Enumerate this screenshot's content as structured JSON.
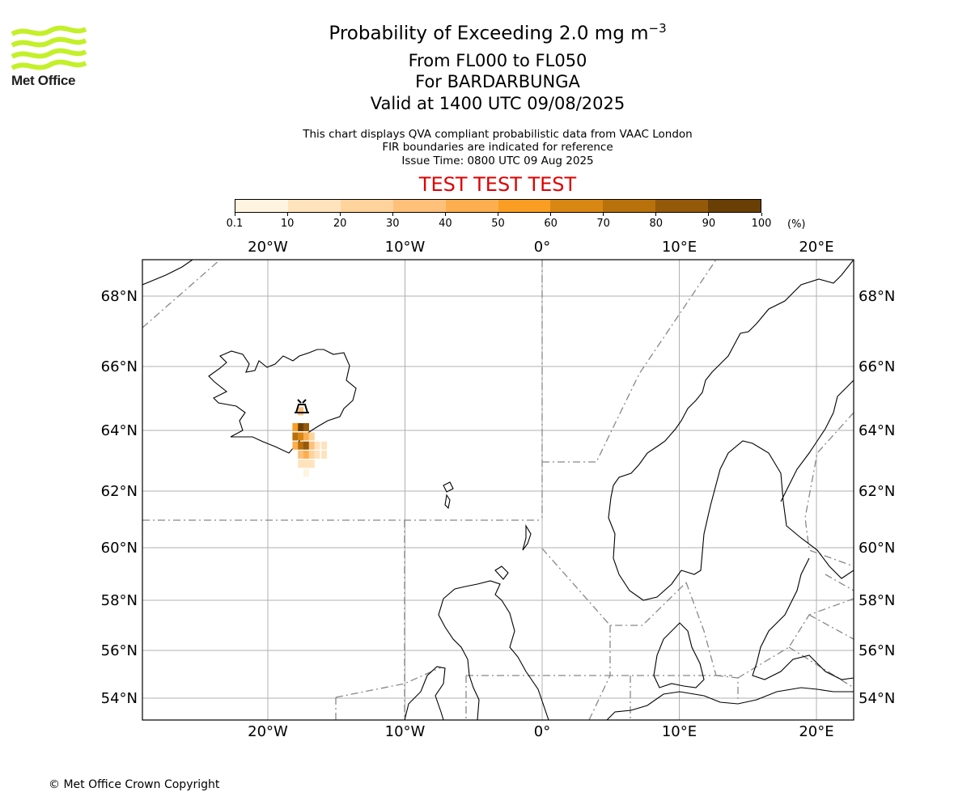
{
  "logo": {
    "text": "Met Office",
    "colors": {
      "waves": "#c3f029",
      "text": "#1e1e1e"
    }
  },
  "header": {
    "title_main": "Probability of Exceeding 2.0 mg m",
    "title_sup": "−3",
    "line_levels": "From FL000 to FL050",
    "line_volcano": "For BARDARBUNGA",
    "line_valid": "Valid at 1400 UTC 09/08/2025",
    "note_1": "This chart displays QVA compliant probabilistic data from VAAC London",
    "note_2": "FIR boundaries are indicated for reference",
    "note_3": "Issue Time: 0800 UTC 09 Aug 2025",
    "test_banner": "TEST TEST TEST",
    "test_color": "#e00000"
  },
  "colorbar": {
    "ticks": [
      "0.1",
      "10",
      "20",
      "30",
      "40",
      "50",
      "60",
      "70",
      "80",
      "90",
      "100"
    ],
    "unit": "(%)",
    "colors": [
      "#fff4e0",
      "#ffe3bd",
      "#ffd39b",
      "#ffc07a",
      "#fdae4f",
      "#f99e23",
      "#d98713",
      "#b9710c",
      "#95590a",
      "#6a3f05"
    ]
  },
  "map": {
    "lon_labels": [
      "20°W",
      "10°W",
      "0°",
      "10°E",
      "20°E"
    ],
    "lon_values": [
      -20,
      -10,
      0,
      10,
      20
    ],
    "lat_labels": [
      "68°N",
      "66°N",
      "64°N",
      "62°N",
      "60°N",
      "58°N",
      "56°N",
      "54°N"
    ],
    "lat_values": [
      68,
      66,
      64,
      62,
      60,
      58,
      56,
      54
    ],
    "volcano_icon": "volcano-icon",
    "ash_probability_cells": [
      {
        "lon": -17.6,
        "lat": 64.6,
        "pct": 30
      },
      {
        "lon": -18.0,
        "lat": 64.1,
        "pct": 55
      },
      {
        "lon": -17.6,
        "lat": 64.1,
        "pct": 95
      },
      {
        "lon": -17.2,
        "lat": 64.1,
        "pct": 85
      },
      {
        "lon": -18.0,
        "lat": 63.8,
        "pct": 78
      },
      {
        "lon": -17.6,
        "lat": 63.8,
        "pct": 65
      },
      {
        "lon": -17.2,
        "lat": 63.8,
        "pct": 48
      },
      {
        "lon": -16.8,
        "lat": 63.8,
        "pct": 25
      },
      {
        "lon": -18.0,
        "lat": 63.5,
        "pct": 40
      },
      {
        "lon": -17.6,
        "lat": 63.5,
        "pct": 72
      },
      {
        "lon": -17.2,
        "lat": 63.5,
        "pct": 80
      },
      {
        "lon": -16.8,
        "lat": 63.5,
        "pct": 35
      },
      {
        "lon": -16.4,
        "lat": 63.5,
        "pct": 18
      },
      {
        "lon": -15.9,
        "lat": 63.5,
        "pct": 12
      },
      {
        "lon": -17.6,
        "lat": 63.2,
        "pct": 30
      },
      {
        "lon": -17.2,
        "lat": 63.2,
        "pct": 40
      },
      {
        "lon": -16.8,
        "lat": 63.2,
        "pct": 22
      },
      {
        "lon": -16.4,
        "lat": 63.2,
        "pct": 15
      },
      {
        "lon": -15.9,
        "lat": 63.2,
        "pct": 10
      },
      {
        "lon": -17.6,
        "lat": 62.9,
        "pct": 14
      },
      {
        "lon": -17.2,
        "lat": 62.9,
        "pct": 18
      },
      {
        "lon": -16.8,
        "lat": 62.9,
        "pct": 10
      },
      {
        "lon": -17.2,
        "lat": 62.6,
        "pct": 8
      }
    ]
  },
  "footer": {
    "copyright": "© Met Office Crown Copyright"
  }
}
